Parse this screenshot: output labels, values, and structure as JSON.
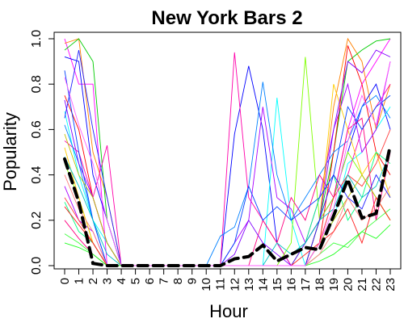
{
  "chart_data": {
    "type": "line",
    "title": "New York Bars 2",
    "xlabel": "Hour",
    "ylabel": "Popularity",
    "x": [
      0,
      1,
      2,
      3,
      4,
      5,
      6,
      7,
      8,
      9,
      10,
      11,
      12,
      13,
      14,
      15,
      16,
      17,
      18,
      19,
      20,
      21,
      22,
      23
    ],
    "x_tick_labels": [
      "0",
      "1",
      "2",
      "3",
      "4",
      "5",
      "6",
      "7",
      "8",
      "9",
      "10",
      "11",
      "12",
      "13",
      "14",
      "15",
      "16",
      "17",
      "18",
      "19",
      "20",
      "21",
      "22",
      "23"
    ],
    "y_ticks": [
      0.0,
      0.2,
      0.4,
      0.6,
      0.8,
      1.0
    ],
    "y_tick_labels": [
      "0.0",
      "0.2",
      "0.4",
      "0.6",
      "0.8",
      "1.0"
    ],
    "xlim": [
      0,
      23
    ],
    "ylim": [
      0,
      1
    ],
    "grid": false,
    "legend": "none",
    "series_count_approx": 120,
    "mean_series": {
      "values": [
        0.47,
        0.28,
        0.01,
        0.0,
        0.0,
        0.0,
        0.0,
        0.0,
        0.0,
        0.0,
        0.0,
        0.0,
        0.03,
        0.04,
        0.09,
        0.02,
        0.05,
        0.08,
        0.07,
        0.22,
        0.38,
        0.21,
        0.23,
        0.53
      ],
      "color": "#000000",
      "style": "dashed"
    },
    "series": [
      {
        "color": "#ff00ff",
        "values": [
          1.0,
          0.8,
          0.8,
          0,
          0,
          0,
          0,
          0,
          0,
          0,
          0,
          0,
          0,
          0,
          0,
          0,
          0,
          0,
          0.1,
          0.3,
          0.6,
          0.8,
          0.9,
          1.0
        ]
      },
      {
        "color": "#ff8000",
        "values": [
          0.98,
          1.0,
          0.5,
          0.3,
          0,
          0,
          0,
          0,
          0,
          0,
          0,
          0,
          0,
          0,
          0,
          0,
          0,
          0,
          0.2,
          0.7,
          1.0,
          0.9,
          0.6,
          0.8
        ]
      },
      {
        "color": "#00cc00",
        "values": [
          0.95,
          1.0,
          0.9,
          0.2,
          0,
          0,
          0,
          0,
          0,
          0,
          0,
          0,
          0,
          0,
          0,
          0,
          0,
          0.1,
          0.2,
          0.5,
          0.9,
          0.95,
          0.99,
          1.0
        ]
      },
      {
        "color": "#0000ff",
        "values": [
          0.92,
          0.9,
          0.4,
          0.2,
          0,
          0,
          0,
          0,
          0,
          0,
          0,
          0,
          0.58,
          0.88,
          0.6,
          0.1,
          0,
          0,
          0.2,
          0.3,
          0.5,
          0.7,
          0.8,
          0.6
        ]
      },
      {
        "color": "#ff0000",
        "values": [
          0.75,
          0.6,
          0.3,
          0.1,
          0,
          0,
          0,
          0,
          0,
          0,
          0,
          0,
          0,
          0,
          0,
          0,
          0,
          0,
          0.1,
          0.5,
          0.97,
          0.8,
          0.5,
          0.4
        ]
      },
      {
        "color": "#00ffff",
        "values": [
          0.68,
          0.4,
          0.2,
          0.1,
          0,
          0,
          0,
          0,
          0,
          0,
          0,
          0,
          0,
          0,
          0,
          0.74,
          0.2,
          0,
          0.1,
          0.2,
          0.45,
          0.5,
          0.6,
          0.7
        ]
      },
      {
        "color": "#ff00aa",
        "values": [
          0.55,
          0.5,
          0.3,
          0.53,
          0,
          0,
          0,
          0,
          0,
          0,
          0,
          0,
          0.94,
          0.3,
          0.2,
          0.1,
          0,
          0,
          0.2,
          0.3,
          0.4,
          0.6,
          0.7,
          0.8
        ]
      },
      {
        "color": "#80ff00",
        "values": [
          0.45,
          0.3,
          0.1,
          0,
          0,
          0,
          0,
          0,
          0,
          0,
          0,
          0,
          0,
          0,
          0,
          0,
          0.1,
          0.92,
          0.2,
          0.3,
          0.5,
          0.4,
          0.3,
          0.2
        ]
      },
      {
        "color": "#0080ff",
        "values": [
          0.62,
          0.45,
          0.2,
          0,
          0,
          0,
          0,
          0,
          0,
          0,
          0,
          0.13,
          0.17,
          0.35,
          0.81,
          0.4,
          0.2,
          0.3,
          0.4,
          0.5,
          0.55,
          0.7,
          0.75,
          0.65
        ]
      },
      {
        "color": "#aa00ff",
        "values": [
          0.35,
          0.2,
          0.15,
          0,
          0,
          0,
          0,
          0,
          0,
          0,
          0,
          0,
          0.1,
          0.2,
          0.7,
          0.3,
          0.25,
          0.1,
          0.3,
          0.6,
          0.8,
          0.5,
          0.6,
          0.9
        ]
      },
      {
        "color": "#ffcc00",
        "values": [
          0.52,
          0.3,
          0.1,
          0,
          0,
          0,
          0,
          0,
          0,
          0,
          0,
          0,
          0,
          0,
          0,
          0,
          0,
          0,
          0.2,
          0.8,
          0.6,
          0.4,
          0.5,
          0.3
        ]
      },
      {
        "color": "#00ff80",
        "values": [
          0.28,
          0.15,
          0.1,
          0,
          0,
          0,
          0,
          0,
          0,
          0,
          0,
          0,
          0,
          0,
          0,
          0,
          0,
          0.1,
          0.3,
          0.4,
          0.2,
          0.3,
          0.5,
          0.45
        ]
      },
      {
        "color": "#ff0080",
        "values": [
          0.2,
          0.12,
          0.05,
          0,
          0,
          0,
          0,
          0,
          0,
          0,
          0,
          0,
          0,
          0,
          0.2,
          0.1,
          0.3,
          0.2,
          0.4,
          0.3,
          0.6,
          0.65,
          0.2,
          0.5
        ]
      },
      {
        "color": "#0040ff",
        "values": [
          0.86,
          0.5,
          0.2,
          0,
          0,
          0,
          0,
          0,
          0,
          0,
          0,
          0,
          0.1,
          0.35,
          0.2,
          0.26,
          0.2,
          0.25,
          0.3,
          0.4,
          0.7,
          0.6,
          0.7,
          0.75
        ]
      },
      {
        "color": "#40ff40",
        "values": [
          0.14,
          0.1,
          0.05,
          0,
          0,
          0,
          0,
          0,
          0,
          0,
          0,
          0,
          0,
          0,
          0,
          0,
          0,
          0,
          0.05,
          0.1,
          0.08,
          0.15,
          0.2,
          0.25
        ]
      },
      {
        "color": "#ff4040",
        "values": [
          0.3,
          0.2,
          0.1,
          0,
          0,
          0,
          0,
          0,
          0,
          0,
          0,
          0,
          0,
          0,
          0,
          0,
          0,
          0,
          0.1,
          0.3,
          0.4,
          0.35,
          0.45,
          0.6
        ]
      },
      {
        "color": "#8000ff",
        "values": [
          0.73,
          0.45,
          0.3,
          0.1,
          0,
          0,
          0,
          0,
          0,
          0,
          0,
          0,
          0.05,
          0.2,
          0.1,
          0.05,
          0,
          0.1,
          0.2,
          0.6,
          0.9,
          0.85,
          0.95,
          0.92
        ]
      },
      {
        "color": "#00c0c0",
        "values": [
          0.48,
          0.35,
          0.2,
          0.05,
          0,
          0,
          0,
          0,
          0,
          0,
          0,
          0,
          0,
          0,
          0,
          0.1,
          0.05,
          0.1,
          0.2,
          0.25,
          0.4,
          0.3,
          0.35,
          0.5
        ]
      },
      {
        "color": "#c0c000",
        "values": [
          0.58,
          0.4,
          0.3,
          0.1,
          0,
          0,
          0,
          0,
          0,
          0,
          0,
          0,
          0,
          0,
          0,
          0,
          0,
          0,
          0.1,
          0.2,
          0.3,
          0.4,
          0.3,
          0.2
        ]
      },
      {
        "color": "#ff8080",
        "values": [
          0.4,
          0.25,
          0.15,
          0,
          0,
          0,
          0,
          0,
          0,
          0,
          0,
          0,
          0,
          0,
          0,
          0,
          0,
          0,
          0.05,
          0.15,
          0.3,
          0.2,
          0.25,
          0.35
        ]
      },
      {
        "color": "#2020ff",
        "values": [
          0.65,
          0.95,
          0.6,
          0.3,
          0,
          0,
          0,
          0,
          0,
          0,
          0,
          0,
          0,
          0,
          0,
          0,
          0,
          0,
          0.2,
          0.4,
          0.3,
          0.25,
          0.4,
          0.3
        ]
      },
      {
        "color": "#ff2020",
        "values": [
          0.26,
          0.18,
          0.1,
          0,
          0,
          0,
          0,
          0,
          0,
          0,
          0,
          0,
          0,
          0,
          0,
          0,
          0,
          0.05,
          0.1,
          0.15,
          0.25,
          0.1,
          0.3,
          0.2
        ]
      },
      {
        "color": "#20ff20",
        "values": [
          0.1,
          0.08,
          0.05,
          0,
          0,
          0,
          0,
          0,
          0,
          0,
          0,
          0,
          0,
          0,
          0,
          0,
          0,
          0,
          0.02,
          0.05,
          0.1,
          0.15,
          0.12,
          0.18
        ]
      },
      {
        "color": "#ff60ff",
        "values": [
          0.83,
          0.62,
          0.45,
          0.2,
          0,
          0,
          0,
          0,
          0,
          0,
          0,
          0,
          0,
          0,
          0,
          0,
          0,
          0,
          0.1,
          0.25,
          0.55,
          0.75,
          0.62,
          0.9
        ]
      }
    ],
    "colors": {
      "background": "#ffffff",
      "axis": "#000000",
      "mean_line": "#000000"
    }
  }
}
